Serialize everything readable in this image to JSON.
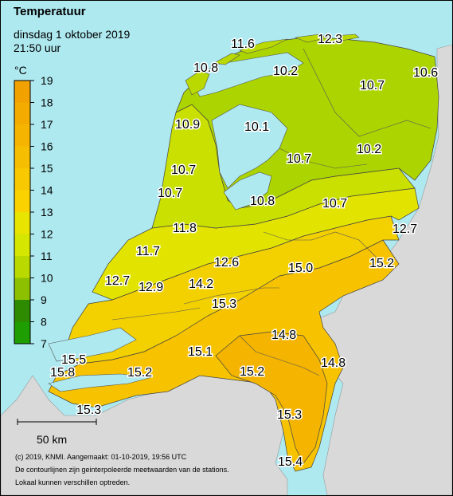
{
  "header": {
    "title": "Temperatuur",
    "date": "dinsdag 1 oktober 2019",
    "time": "21:50 uur"
  },
  "legend": {
    "unit": "°C",
    "ticks": [
      "19",
      "18",
      "17",
      "16",
      "15",
      "14",
      "13",
      "12",
      "11",
      "10",
      "9",
      "8",
      "7"
    ],
    "colors": [
      "#f2a200",
      "#f3ab00",
      "#f5b400",
      "#f6be00",
      "#f8c800",
      "#f9d200",
      "#e9e300",
      "#d5e600",
      "#b9d900",
      "#8cc000",
      "#2e8b00",
      "#1e9e00",
      "#10b400"
    ]
  },
  "scale": {
    "label": "50 km"
  },
  "footer": {
    "line1": "(c) 2019, KNMI. Aangemaakt: 01-10-2019, 19:56 UTC",
    "line2": "De contourlijnen zijn geinterpoleerde meetwaarden van de stations.",
    "line3": "Lokaal kunnen verschillen optreden."
  },
  "stations": [
    {
      "label": "11.6"
    },
    {
      "label": "12.3"
    },
    {
      "label": "10.8"
    },
    {
      "label": "10.2"
    },
    {
      "label": "10.7"
    },
    {
      "label": "10.6"
    },
    {
      "label": "10.9"
    },
    {
      "label": "10.1"
    },
    {
      "label": "10.7"
    },
    {
      "label": "10.2"
    },
    {
      "label": "10.7"
    },
    {
      "label": "10.7"
    },
    {
      "label": "10.8"
    },
    {
      "label": "10.7"
    },
    {
      "label": "11.8"
    },
    {
      "label": "12.7"
    },
    {
      "label": "11.7"
    },
    {
      "label": "12.6"
    },
    {
      "label": "15.0"
    },
    {
      "label": "15.2"
    },
    {
      "label": "12.7"
    },
    {
      "label": "12.9"
    },
    {
      "label": "14.2"
    },
    {
      "label": "15.3"
    },
    {
      "label": "14.8"
    },
    {
      "label": "15.5"
    },
    {
      "label": "15.1"
    },
    {
      "label": "14.8"
    },
    {
      "label": "15.8"
    },
    {
      "label": "15.2"
    },
    {
      "label": "15.2"
    },
    {
      "label": "15.3"
    },
    {
      "label": "15.3"
    },
    {
      "label": "15.4"
    }
  ]
}
